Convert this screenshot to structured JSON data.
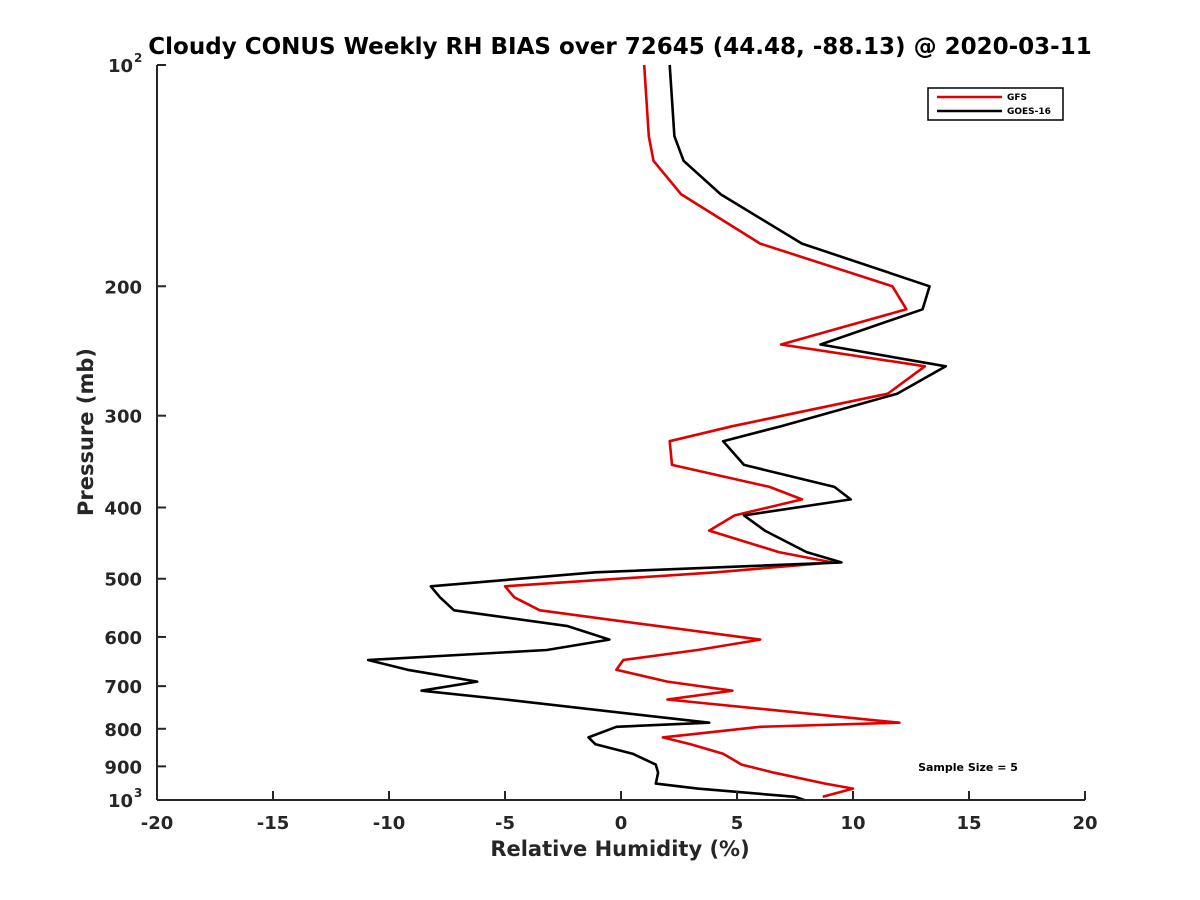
{
  "chart_data": {
    "type": "line",
    "title": "Cloudy CONUS Weekly RH BIAS over 72645 (44.48, -88.13) @ 2020-03-11",
    "xlabel": "Relative Humidity (%)",
    "ylabel": "Pressure (mb)",
    "xlim": [
      -20,
      20
    ],
    "ylim": [
      100,
      1000
    ],
    "y_scale": "log",
    "y_reversed": true,
    "grid": false,
    "legend_position": "top-right",
    "x_ticks": [
      -20,
      -15,
      -10,
      -5,
      0,
      5,
      10,
      15,
      20
    ],
    "x_tick_labels": [
      "-20",
      "-15",
      "-10",
      "-5",
      "0",
      "5",
      "10",
      "15",
      "20"
    ],
    "y_ticks": [
      {
        "value": 100,
        "label": "10",
        "exp": "2"
      },
      {
        "value": 200,
        "label": "200"
      },
      {
        "value": 300,
        "label": "300"
      },
      {
        "value": 400,
        "label": "400"
      },
      {
        "value": 500,
        "label": "500"
      },
      {
        "value": 600,
        "label": "600"
      },
      {
        "value": 700,
        "label": "700"
      },
      {
        "value": 800,
        "label": "800"
      },
      {
        "value": 900,
        "label": "900"
      },
      {
        "value": 1000,
        "label": "10",
        "exp": "3"
      }
    ],
    "series": [
      {
        "name": "GFS",
        "color": "#e00000",
        "points": [
          [
            1.0,
            100
          ],
          [
            1.2,
            125
          ],
          [
            1.4,
            135
          ],
          [
            2.6,
            150
          ],
          [
            6.0,
            175
          ],
          [
            11.7,
            200
          ],
          [
            12.3,
            215
          ],
          [
            6.9,
            240
          ],
          [
            13.1,
            257
          ],
          [
            11.5,
            280
          ],
          [
            4.8,
            310
          ],
          [
            2.1,
            325
          ],
          [
            2.2,
            350
          ],
          [
            6.4,
            375
          ],
          [
            7.8,
            390
          ],
          [
            4.9,
            410
          ],
          [
            3.8,
            430
          ],
          [
            6.8,
            460
          ],
          [
            9.1,
            475
          ],
          [
            4.1,
            490
          ],
          [
            -5.0,
            512
          ],
          [
            -4.6,
            530
          ],
          [
            -3.5,
            552
          ],
          [
            1.6,
            580
          ],
          [
            6.0,
            605
          ],
          [
            3.3,
            625
          ],
          [
            0.1,
            645
          ],
          [
            -0.2,
            665
          ],
          [
            2.0,
            690
          ],
          [
            4.8,
            710
          ],
          [
            2.0,
            730
          ],
          [
            12.0,
            785
          ],
          [
            6.0,
            795
          ],
          [
            1.8,
            822
          ],
          [
            3.0,
            840
          ],
          [
            4.4,
            865
          ],
          [
            5.2,
            895
          ],
          [
            6.6,
            918
          ],
          [
            8.8,
            950
          ],
          [
            10.0,
            965
          ],
          [
            8.7,
            990
          ]
        ]
      },
      {
        "name": "GOES-16",
        "color": "#000000",
        "points": [
          [
            2.1,
            100
          ],
          [
            2.3,
            125
          ],
          [
            2.7,
            135
          ],
          [
            4.3,
            150
          ],
          [
            7.8,
            175
          ],
          [
            13.3,
            200
          ],
          [
            13.0,
            215
          ],
          [
            8.6,
            240
          ],
          [
            14.0,
            257
          ],
          [
            11.9,
            280
          ],
          [
            6.9,
            310
          ],
          [
            4.4,
            325
          ],
          [
            5.3,
            350
          ],
          [
            9.2,
            375
          ],
          [
            9.9,
            390
          ],
          [
            5.3,
            410
          ],
          [
            6.2,
            430
          ],
          [
            8.0,
            460
          ],
          [
            9.5,
            475
          ],
          [
            -1.1,
            490
          ],
          [
            -8.2,
            512
          ],
          [
            -7.8,
            530
          ],
          [
            -7.2,
            552
          ],
          [
            -2.3,
            580
          ],
          [
            -0.5,
            605
          ],
          [
            -3.2,
            625
          ],
          [
            -10.9,
            645
          ],
          [
            -9.2,
            665
          ],
          [
            -6.2,
            690
          ],
          [
            -8.6,
            710
          ],
          [
            -5.0,
            730
          ],
          [
            3.8,
            785
          ],
          [
            -0.2,
            795
          ],
          [
            -1.4,
            822
          ],
          [
            -1.1,
            840
          ],
          [
            0.5,
            865
          ],
          [
            1.5,
            895
          ],
          [
            1.6,
            918
          ],
          [
            1.5,
            950
          ],
          [
            3.3,
            965
          ],
          [
            7.5,
            990
          ],
          [
            7.9,
            1000
          ]
        ]
      }
    ],
    "annotation": "Sample Size = 5"
  }
}
